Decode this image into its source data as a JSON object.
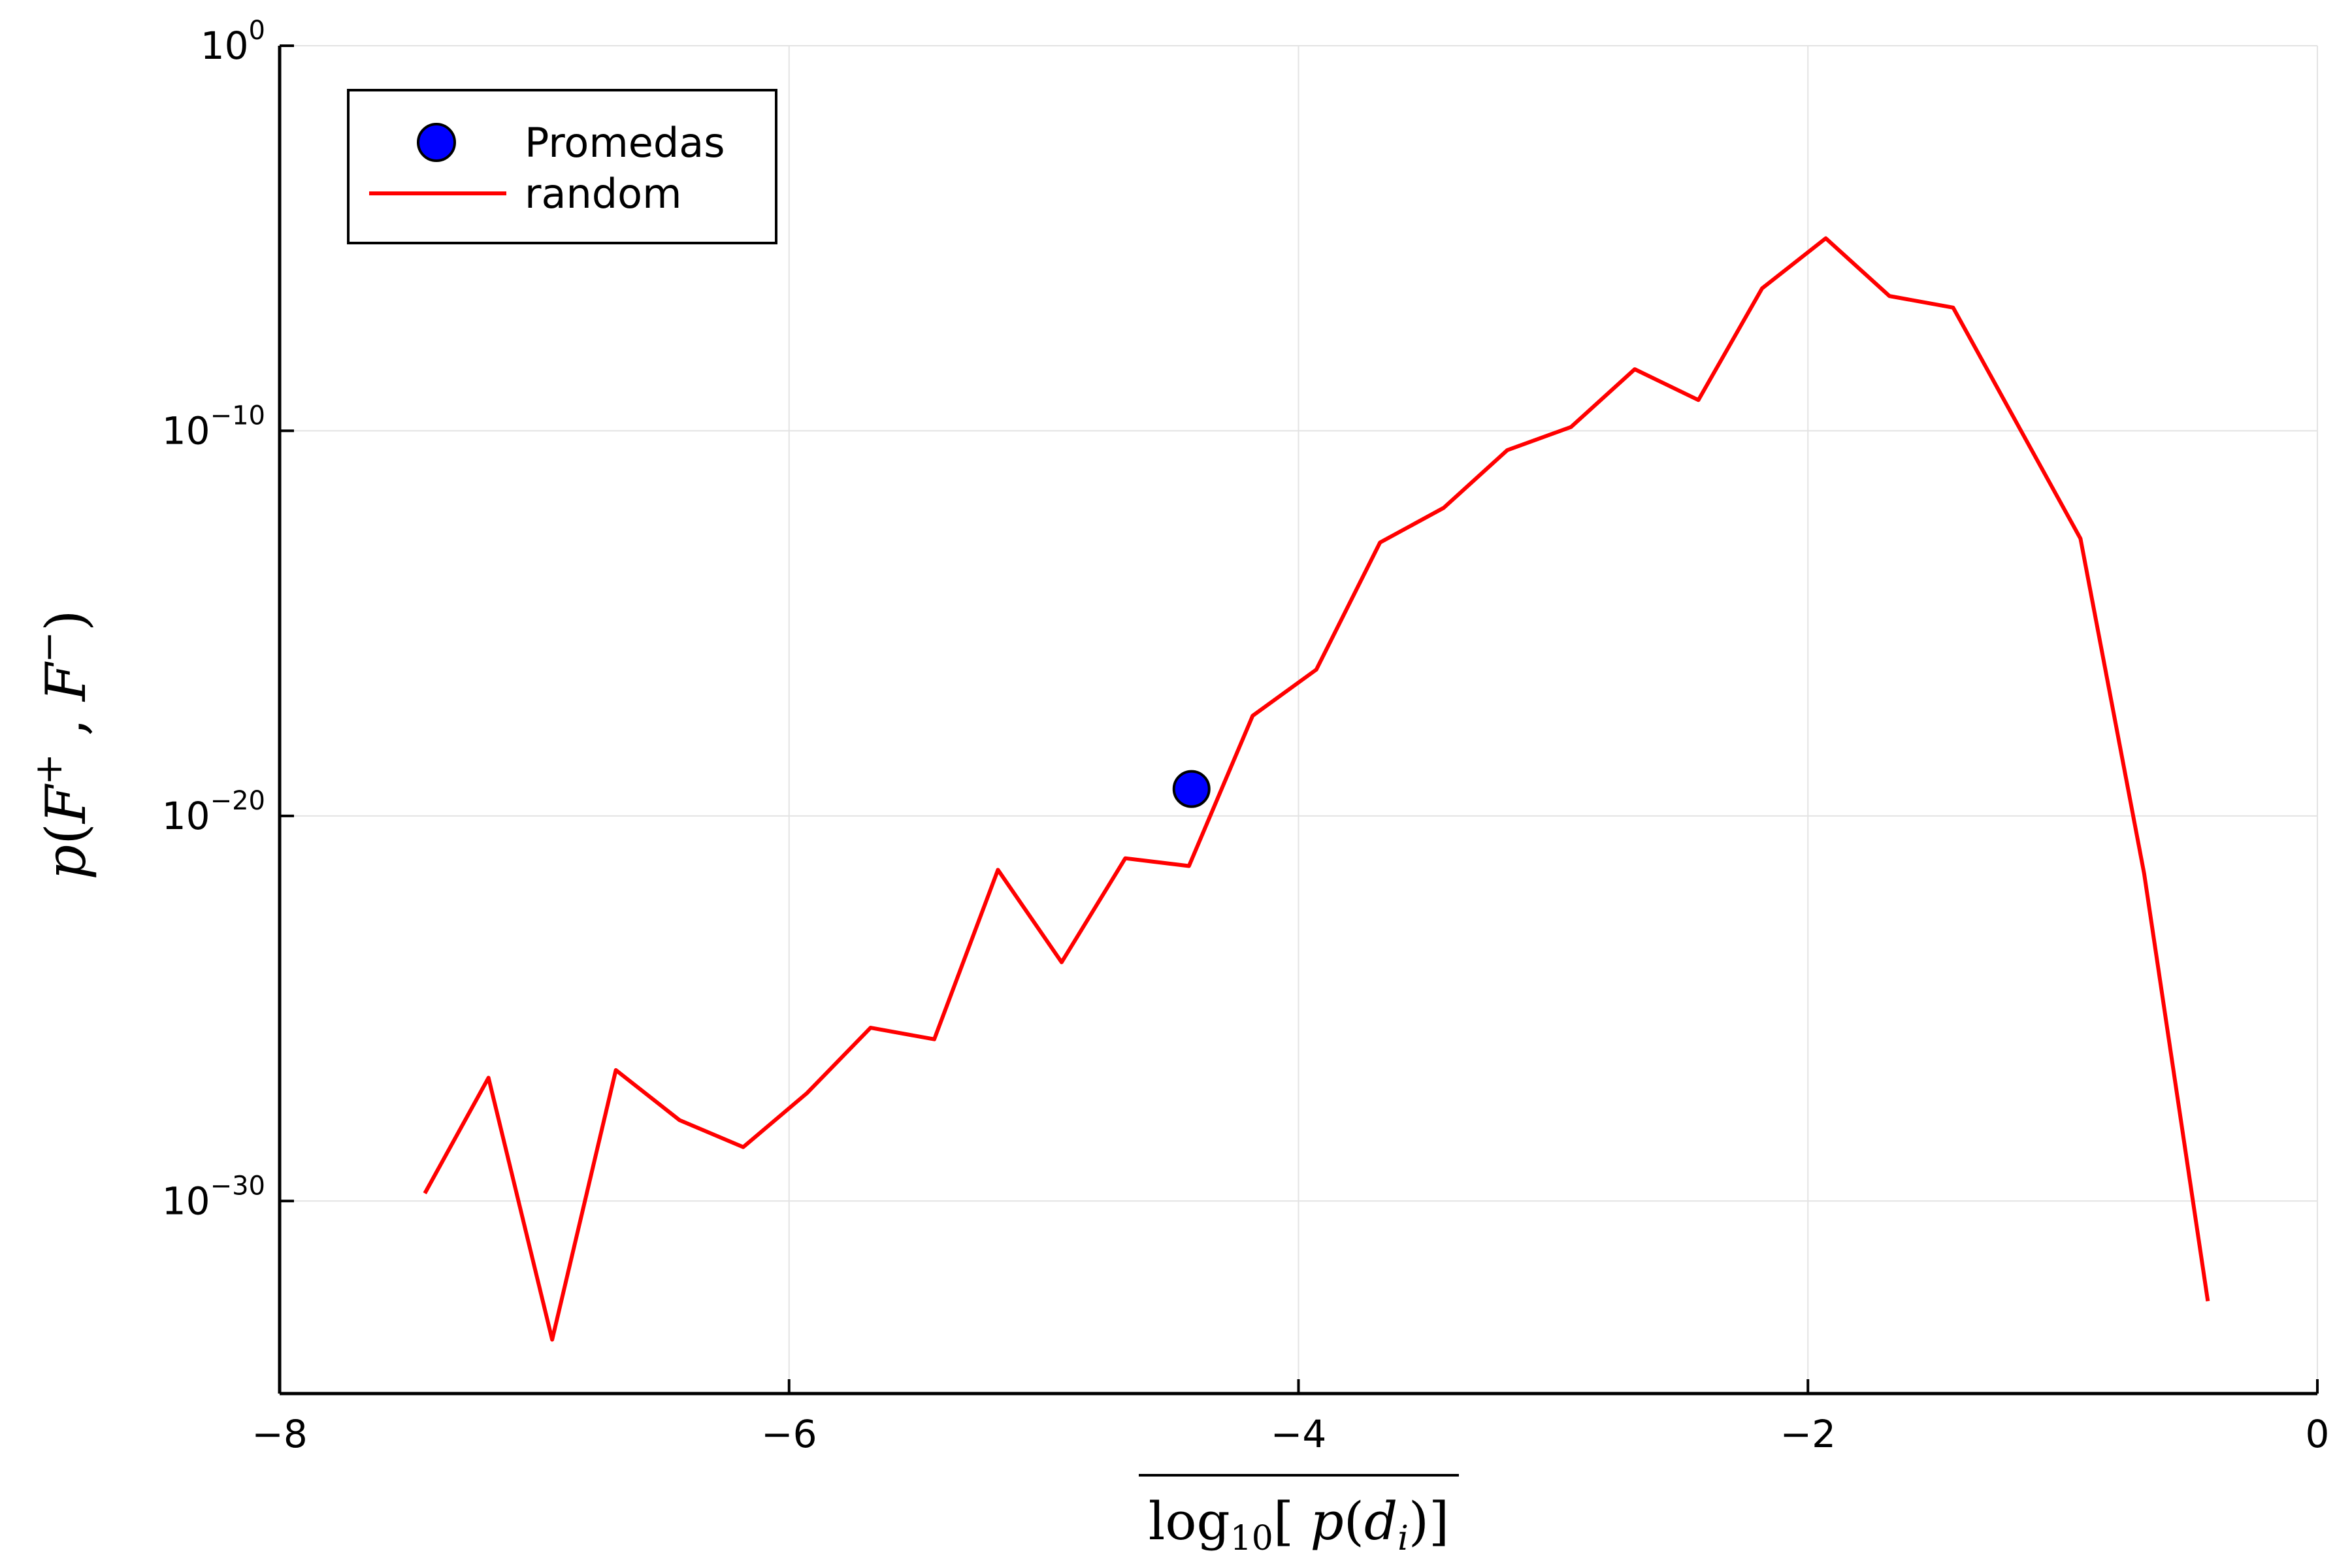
{
  "chart_data": {
    "type": "line",
    "title": "",
    "xlabel": "log10[ p(d_i)]",
    "ylabel": "p(F+ , F−)",
    "xlim": [
      -8,
      0
    ],
    "ylim_log10": [
      -35,
      0
    ],
    "yscale": "log",
    "grid": true,
    "legend_position": "top-left",
    "x_ticks": [
      -8,
      -6,
      -4,
      -2,
      0
    ],
    "x_tick_labels": [
      "−8",
      "−6",
      "−4",
      "−2",
      "0"
    ],
    "y_ticks_log10": [
      0,
      -10,
      -20,
      -30
    ],
    "y_tick_labels": [
      {
        "base": "10",
        "exp": "0"
      },
      {
        "base": "10",
        "exp": "−10"
      },
      {
        "base": "10",
        "exp": "−20"
      },
      {
        "base": "10",
        "exp": "−30"
      }
    ],
    "series": [
      {
        "name": "Promedas",
        "kind": "scatter",
        "color": "#0000ff",
        "x": [
          -4.42
        ],
        "y_log10": [
          -19.3
        ]
      },
      {
        "name": "random",
        "kind": "line",
        "color": "#ff0000",
        "x": [
          -7.43,
          -7.18,
          -6.93,
          -6.68,
          -6.43,
          -6.18,
          -5.93,
          -5.68,
          -5.43,
          -5.18,
          -4.93,
          -4.68,
          -4.43,
          -4.18,
          -3.93,
          -3.68,
          -3.43,
          -3.18,
          -2.93,
          -2.68,
          -2.43,
          -2.18,
          -1.93,
          -1.68,
          -1.43,
          -1.18,
          -0.93,
          -0.68,
          -0.43
        ],
        "y_log10": [
          -29.8,
          -26.8,
          -33.6,
          -26.6,
          -27.9,
          -28.6,
          -27.2,
          -25.5,
          -25.8,
          -21.4,
          -23.8,
          -21.1,
          -21.3,
          -17.4,
          -16.2,
          -12.9,
          -12.0,
          -10.5,
          -9.9,
          -8.4,
          -9.2,
          -6.3,
          -5.0,
          -6.5,
          -6.8,
          -9.8,
          -12.8,
          -21.5,
          -32.6
        ]
      }
    ]
  }
}
